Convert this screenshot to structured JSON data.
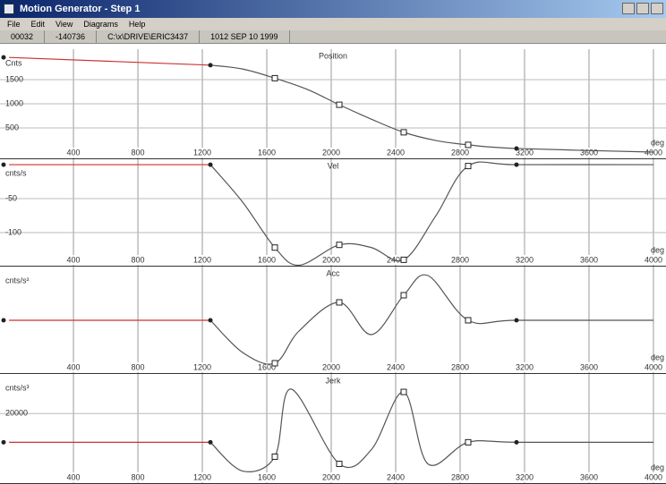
{
  "window": {
    "title": "Motion Generator - Step 1"
  },
  "menu": [
    "File",
    "Edit",
    "View",
    "Diagrams",
    "Help"
  ],
  "status": [
    "00032",
    "-140736",
    "C:\\x\\DRIVE\\ERIC3437",
    "1012 SEP 10 1999"
  ],
  "chart_data": [
    {
      "type": "line",
      "title": "Position",
      "y_label": "Cnts",
      "x_unit": "deg",
      "xlim": [
        -56,
        4078
      ],
      "xticks": [
        400,
        800,
        1200,
        1600,
        2000,
        2400,
        2800,
        3200,
        3600,
        4000
      ],
      "ylim": [
        -148,
        2130
      ],
      "yticks": [
        500,
        1000,
        1500
      ],
      "grid": true,
      "x": [
        0,
        1250,
        1450,
        1650,
        1850,
        2050,
        2250,
        2450,
        2650,
        2850,
        3150,
        4000
      ],
      "values": [
        1960,
        1800,
        1720,
        1530,
        1300,
        980,
        680,
        410,
        240,
        150,
        75,
        0
      ],
      "knots_x": [
        1250,
        1650,
        2050,
        2450,
        2850,
        3150
      ],
      "color": "#555555",
      "start_color": "#cc3333"
    },
    {
      "type": "line",
      "title": "Vel",
      "y_label": "cnts/s",
      "x_unit": "deg",
      "xlim": [
        -56,
        4078
      ],
      "xticks": [
        400,
        800,
        1200,
        1600,
        2000,
        2400,
        2800,
        3200,
        3600,
        4000
      ],
      "ylim": [
        -150,
        8
      ],
      "yticks": [
        -50,
        -100
      ],
      "grid": true,
      "x": [
        0,
        1250,
        1450,
        1650,
        1800,
        2050,
        2250,
        2450,
        2650,
        2850,
        3150,
        4000
      ],
      "values": [
        0,
        0,
        -55,
        -122,
        -148,
        -118,
        -122,
        -140,
        -75,
        -2,
        0,
        0
      ],
      "knots_x": [
        1250,
        1650,
        2050,
        2450,
        2850,
        3150
      ],
      "color": "#555555",
      "start_color": "#cc3333"
    },
    {
      "type": "line",
      "title": "Acc",
      "y_label": "cnts/s²",
      "x_unit": "deg",
      "xlim": [
        -56,
        4078
      ],
      "xticks": [
        400,
        800,
        1200,
        1600,
        2000,
        2400,
        2800,
        3200,
        3600,
        4000
      ],
      "ylim": [
        -15000,
        15000
      ],
      "yticks": [],
      "grid": true,
      "x": [
        0,
        1250,
        1450,
        1650,
        1800,
        2050,
        2250,
        2450,
        2600,
        2850,
        3150,
        4000
      ],
      "values": [
        0,
        0,
        -9000,
        -12000,
        -3000,
        5000,
        -4000,
        7000,
        12500,
        0,
        0,
        0
      ],
      "knots_x": [
        1250,
        1650,
        2050,
        2450,
        2850,
        3150
      ],
      "color": "#555555",
      "start_color": "#cc3333"
    },
    {
      "type": "line",
      "title": "Jerk",
      "y_label": "cnts/s³",
      "x_unit": "deg",
      "xlim": [
        -56,
        4078
      ],
      "xticks": [
        400,
        800,
        1200,
        1600,
        2000,
        2400,
        2800,
        3200,
        3600,
        4000
      ],
      "ylim": [
        -29000,
        47500
      ],
      "yticks": [
        20000
      ],
      "grid": true,
      "x": [
        0,
        1250,
        1450,
        1650,
        1750,
        2050,
        2250,
        2450,
        2600,
        2850,
        3150,
        4000
      ],
      "values": [
        0,
        0,
        -20000,
        -10000,
        37000,
        -15000,
        -5000,
        35000,
        -15000,
        0,
        0,
        0
      ],
      "knots_x": [
        1250,
        1650,
        2050,
        2450,
        2850,
        3150
      ],
      "color": "#555555",
      "start_color": "#cc3333"
    }
  ]
}
